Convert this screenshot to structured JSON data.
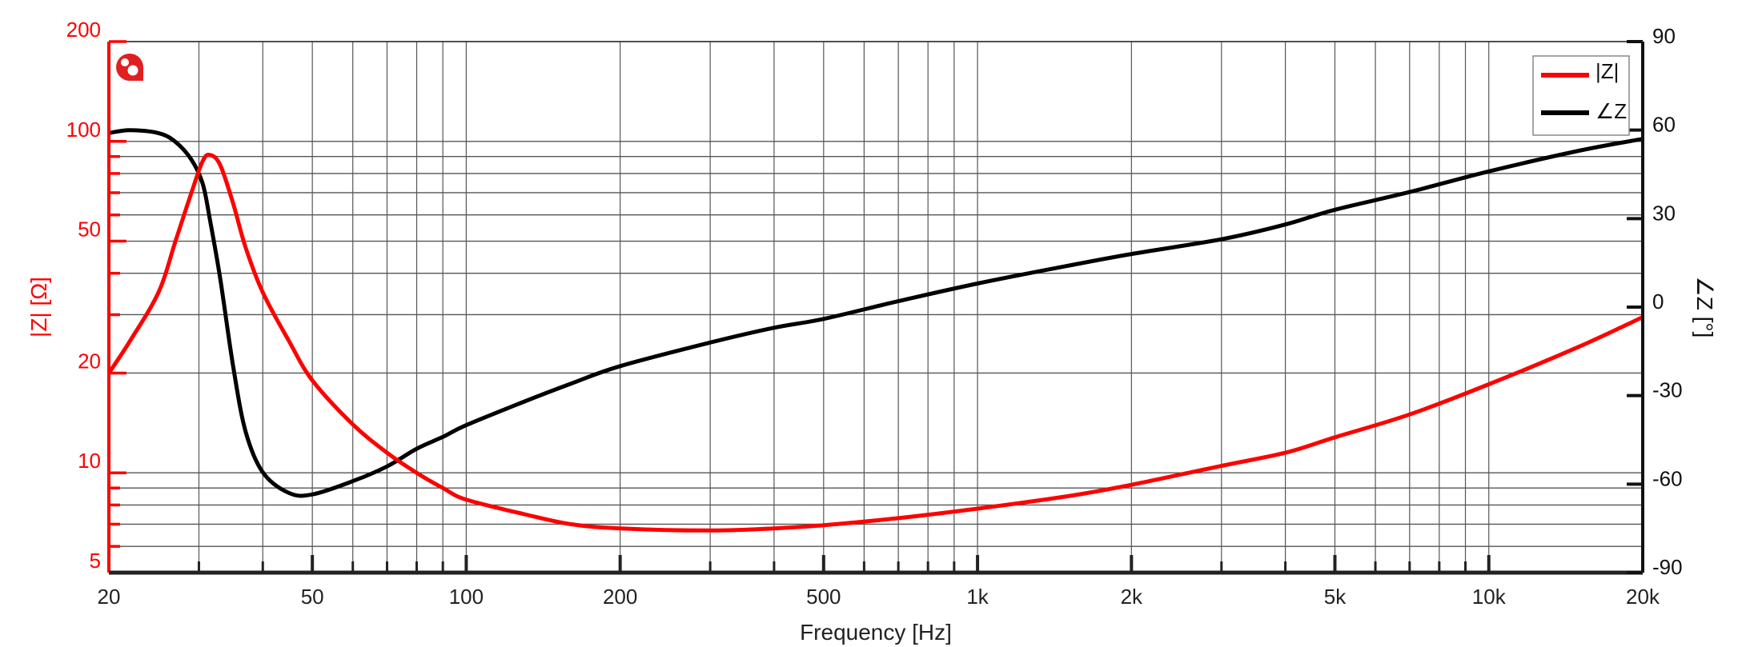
{
  "chart_data": {
    "type": "line",
    "title": "",
    "xlabel": "Frequency [Hz]",
    "ylabel": "|Z| [Ω]",
    "y2label": "∠Z [°]",
    "xscale": "log",
    "yscale": "log",
    "xlim": [
      20,
      20000
    ],
    "ylim": [
      5,
      200
    ],
    "y2lim": [
      -90,
      90
    ],
    "grid": true,
    "legend_position": "upper right",
    "x_ticks": [
      20,
      50,
      100,
      200,
      500,
      1000,
      2000,
      5000,
      10000,
      20000
    ],
    "x_tick_labels": [
      "20",
      "50",
      "100",
      "200",
      "500",
      "1k",
      "2k",
      "5k",
      "10k",
      "20k"
    ],
    "y_ticks": [
      5,
      10,
      20,
      50,
      100,
      200
    ],
    "y_tick_labels": [
      "5",
      "10",
      "20",
      "50",
      "100",
      "200"
    ],
    "y2_ticks": [
      -90,
      -60,
      -30,
      0,
      30,
      60,
      90
    ],
    "y2_tick_labels": [
      "-90",
      "-60",
      "-30",
      "0",
      "30",
      "60",
      "90"
    ],
    "x": [
      20,
      22,
      25,
      27,
      29,
      30.5,
      31.5,
      33,
      35,
      37,
      40,
      45,
      50,
      60,
      70,
      80,
      90,
      100,
      130,
      160,
      200,
      300,
      400,
      500,
      700,
      1000,
      1500,
      2000,
      3000,
      4000,
      5000,
      7000,
      10000,
      15000,
      20000
    ],
    "series": [
      {
        "name": "|Z|",
        "axis": "left",
        "color": "#ff0000",
        "values": [
          20.0,
          25,
          35,
          50,
          70,
          87,
          91,
          85,
          65,
          48,
          35,
          25,
          19,
          14,
          11.5,
          10,
          9,
          8.3,
          7.5,
          7.0,
          6.8,
          6.7,
          6.8,
          6.95,
          7.3,
          7.8,
          8.5,
          9.2,
          10.5,
          11.5,
          12.8,
          15,
          18.5,
          24,
          29.5
        ]
      },
      {
        "name": "∠Z",
        "axis": "right",
        "color": "#000000",
        "values": [
          59,
          60,
          59,
          56,
          50,
          42,
          30,
          10,
          -20,
          -42,
          -56,
          -63,
          -63.5,
          -59,
          -54,
          -48,
          -44,
          -40,
          -32,
          -26,
          -20,
          -12,
          -7,
          -4,
          2,
          8,
          14,
          18,
          23,
          28,
          33,
          39,
          46,
          53,
          57
        ]
      }
    ]
  },
  "axes": {
    "x_title": "Frequency [Hz]",
    "y_left_title": "|Z| [Ω]",
    "y_right_title": "∠Z [°]"
  },
  "legend": {
    "items": [
      {
        "label": "|Z|",
        "color": "#ff0000"
      },
      {
        "label": "∠Z",
        "color": "#000000"
      }
    ]
  },
  "colors": {
    "impedance": "#ff0000",
    "phase": "#000000",
    "grid": "#333333",
    "logo": "#e02020"
  }
}
